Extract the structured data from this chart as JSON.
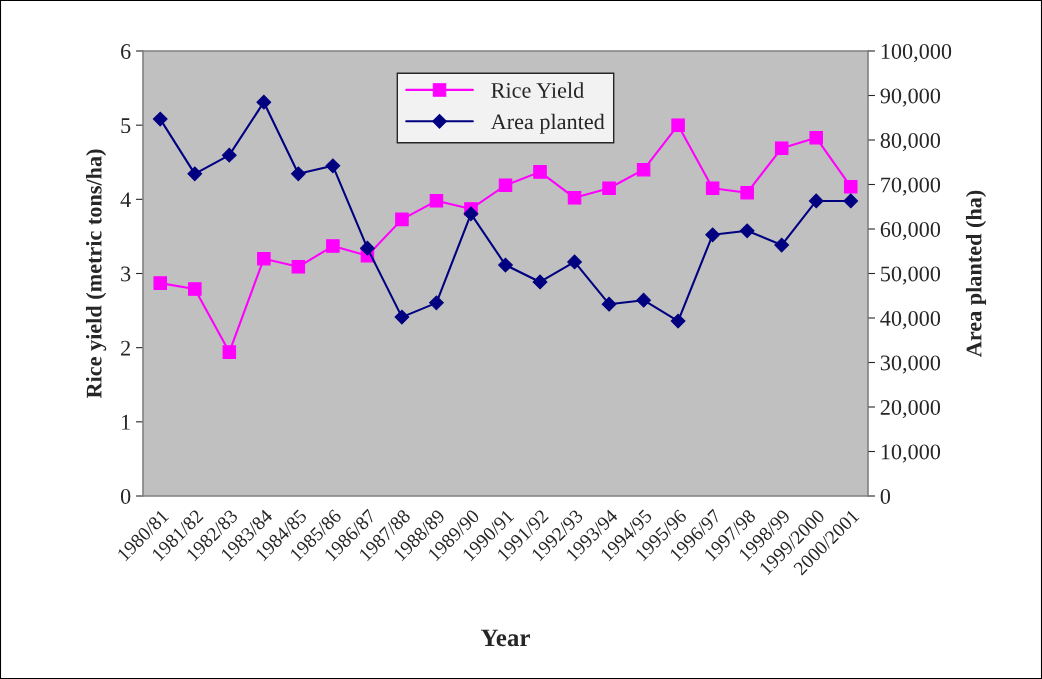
{
  "chart_data": {
    "type": "line",
    "xlabel": "Year",
    "ylabel": "Rice yield (metric tons/ha)",
    "y2label": "Area planted (ha)",
    "categories": [
      "1980/81",
      "1981/82",
      "1982/83",
      "1983/84",
      "1984/85",
      "1985/86",
      "1986/87",
      "1987/88",
      "1988/89",
      "1989/90",
      "1990/91",
      "1991/92",
      "1992/93",
      "1993/94",
      "1994/95",
      "1995/96",
      "1996/97",
      "1997/98",
      "1998/99",
      "1999/2000",
      "2000/2001"
    ],
    "series": [
      {
        "name": "Rice Yield",
        "color": "#ff00ff",
        "marker": "square",
        "values": [
          2.87,
          2.79,
          1.94,
          3.2,
          3.09,
          3.37,
          3.24,
          3.73,
          3.98,
          3.87,
          4.19,
          4.37,
          4.02,
          4.15,
          4.4,
          5.0,
          4.15,
          4.09,
          4.69,
          4.83,
          4.17
        ]
      },
      {
        "name": "Area planted",
        "color": "#000080",
        "marker": "diamond",
        "axis": "y2",
        "values": [
          84700,
          72400,
          76600,
          88500,
          72400,
          74200,
          55700,
          40200,
          43400,
          63400,
          51900,
          48100,
          52600,
          43100,
          44000,
          39300,
          58700,
          59600,
          56400,
          66300,
          66300
        ]
      }
    ],
    "ylim": [
      0,
      6
    ],
    "yticks": [
      0,
      1,
      2,
      3,
      4,
      5,
      6
    ],
    "y2lim": [
      0,
      100000
    ],
    "y2ticks": [
      0,
      {
        "value": 10000,
        "label": "10,000"
      },
      {
        "value": 20000,
        "label": "20,000"
      },
      {
        "value": 30000,
        "label": "30,000"
      },
      {
        "value": 40000,
        "label": "40,000"
      },
      {
        "value": 50000,
        "label": "50,000"
      },
      {
        "value": 60000,
        "label": "60,000"
      },
      {
        "value": 70000,
        "label": "70,000"
      },
      {
        "value": 80000,
        "label": "80,000"
      },
      {
        "value": 90000,
        "label": "90,000"
      },
      {
        "value": 100000,
        "label": "100,000"
      }
    ],
    "legend": "top",
    "grid": false,
    "line_style": "solid"
  }
}
